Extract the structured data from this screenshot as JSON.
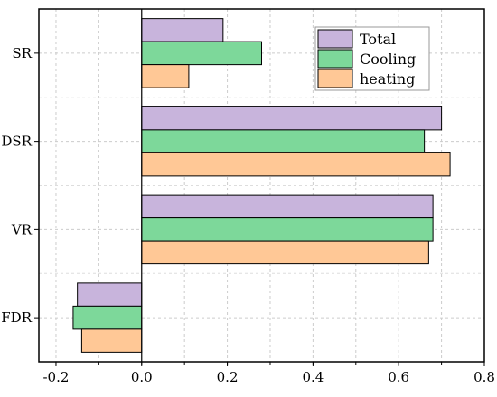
{
  "chart_data": {
    "type": "bar",
    "orientation": "horizontal",
    "categories": [
      "SR",
      "DSR",
      "VR",
      "FDR"
    ],
    "series": [
      {
        "name": "Total",
        "values": [
          0.19,
          0.7,
          0.68,
          -0.15
        ],
        "color": "#c8b4dc"
      },
      {
        "name": "Cooling",
        "values": [
          0.28,
          0.66,
          0.68,
          -0.16
        ],
        "color": "#7dd89a"
      },
      {
        "name": "heating",
        "values": [
          0.11,
          0.72,
          0.67,
          -0.14
        ],
        "color": "#ffc896"
      }
    ],
    "xlim": [
      -0.24,
      0.8
    ],
    "xticks": [
      -0.2,
      0.0,
      0.2,
      0.4,
      0.6,
      0.8
    ],
    "xtick_labels": [
      "-0.2",
      "0.0",
      "0.2",
      "0.4",
      "0.6",
      "0.8"
    ],
    "title": "",
    "xlabel": "",
    "ylabel": "",
    "grid": true,
    "legend_position": "top-right"
  }
}
